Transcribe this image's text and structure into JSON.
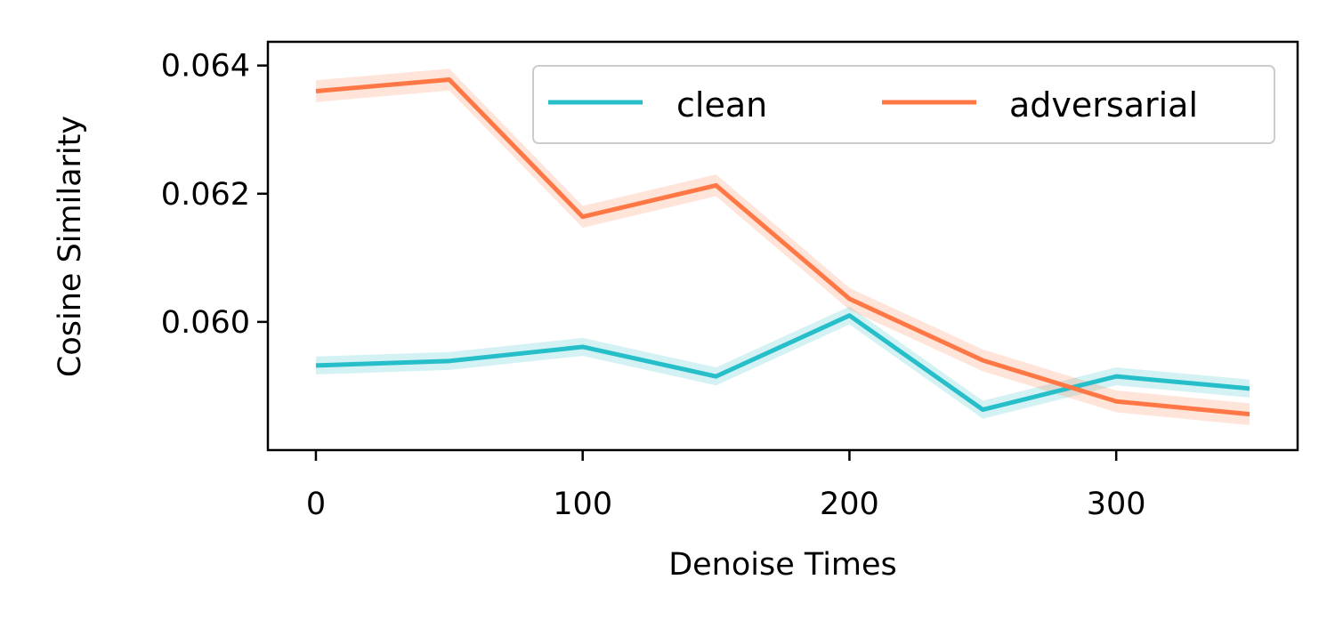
{
  "chart_data": {
    "type": "line",
    "title": "",
    "xlabel": "Denoise Times",
    "ylabel": "Cosine Similarity",
    "xlim": [
      -18,
      368
    ],
    "ylim": [
      0.058,
      0.06437
    ],
    "xticks": [
      0,
      100,
      200,
      300
    ],
    "xtick_labels": [
      "0",
      "100",
      "200",
      "300"
    ],
    "yticks": [
      0.06,
      0.062,
      0.064
    ],
    "ytick_labels": [
      "0.060",
      "0.062",
      "0.064"
    ],
    "grid": false,
    "legend": {
      "placement": "top-right",
      "columns": 2
    },
    "x": [
      0,
      50,
      100,
      150,
      200,
      250,
      300,
      350
    ],
    "series": [
      {
        "name": "clean",
        "color": "#26bec9",
        "values": [
          0.05932,
          0.05939,
          0.05961,
          0.05915,
          0.0601,
          0.05863,
          0.05915,
          0.05896
        ],
        "band": 0.00014
      },
      {
        "name": "adversarial",
        "color": "#ff7744",
        "values": [
          0.0636,
          0.06378,
          0.06164,
          0.06213,
          0.06036,
          0.0594,
          0.05876,
          0.05856
        ],
        "band": 0.00017
      }
    ]
  }
}
